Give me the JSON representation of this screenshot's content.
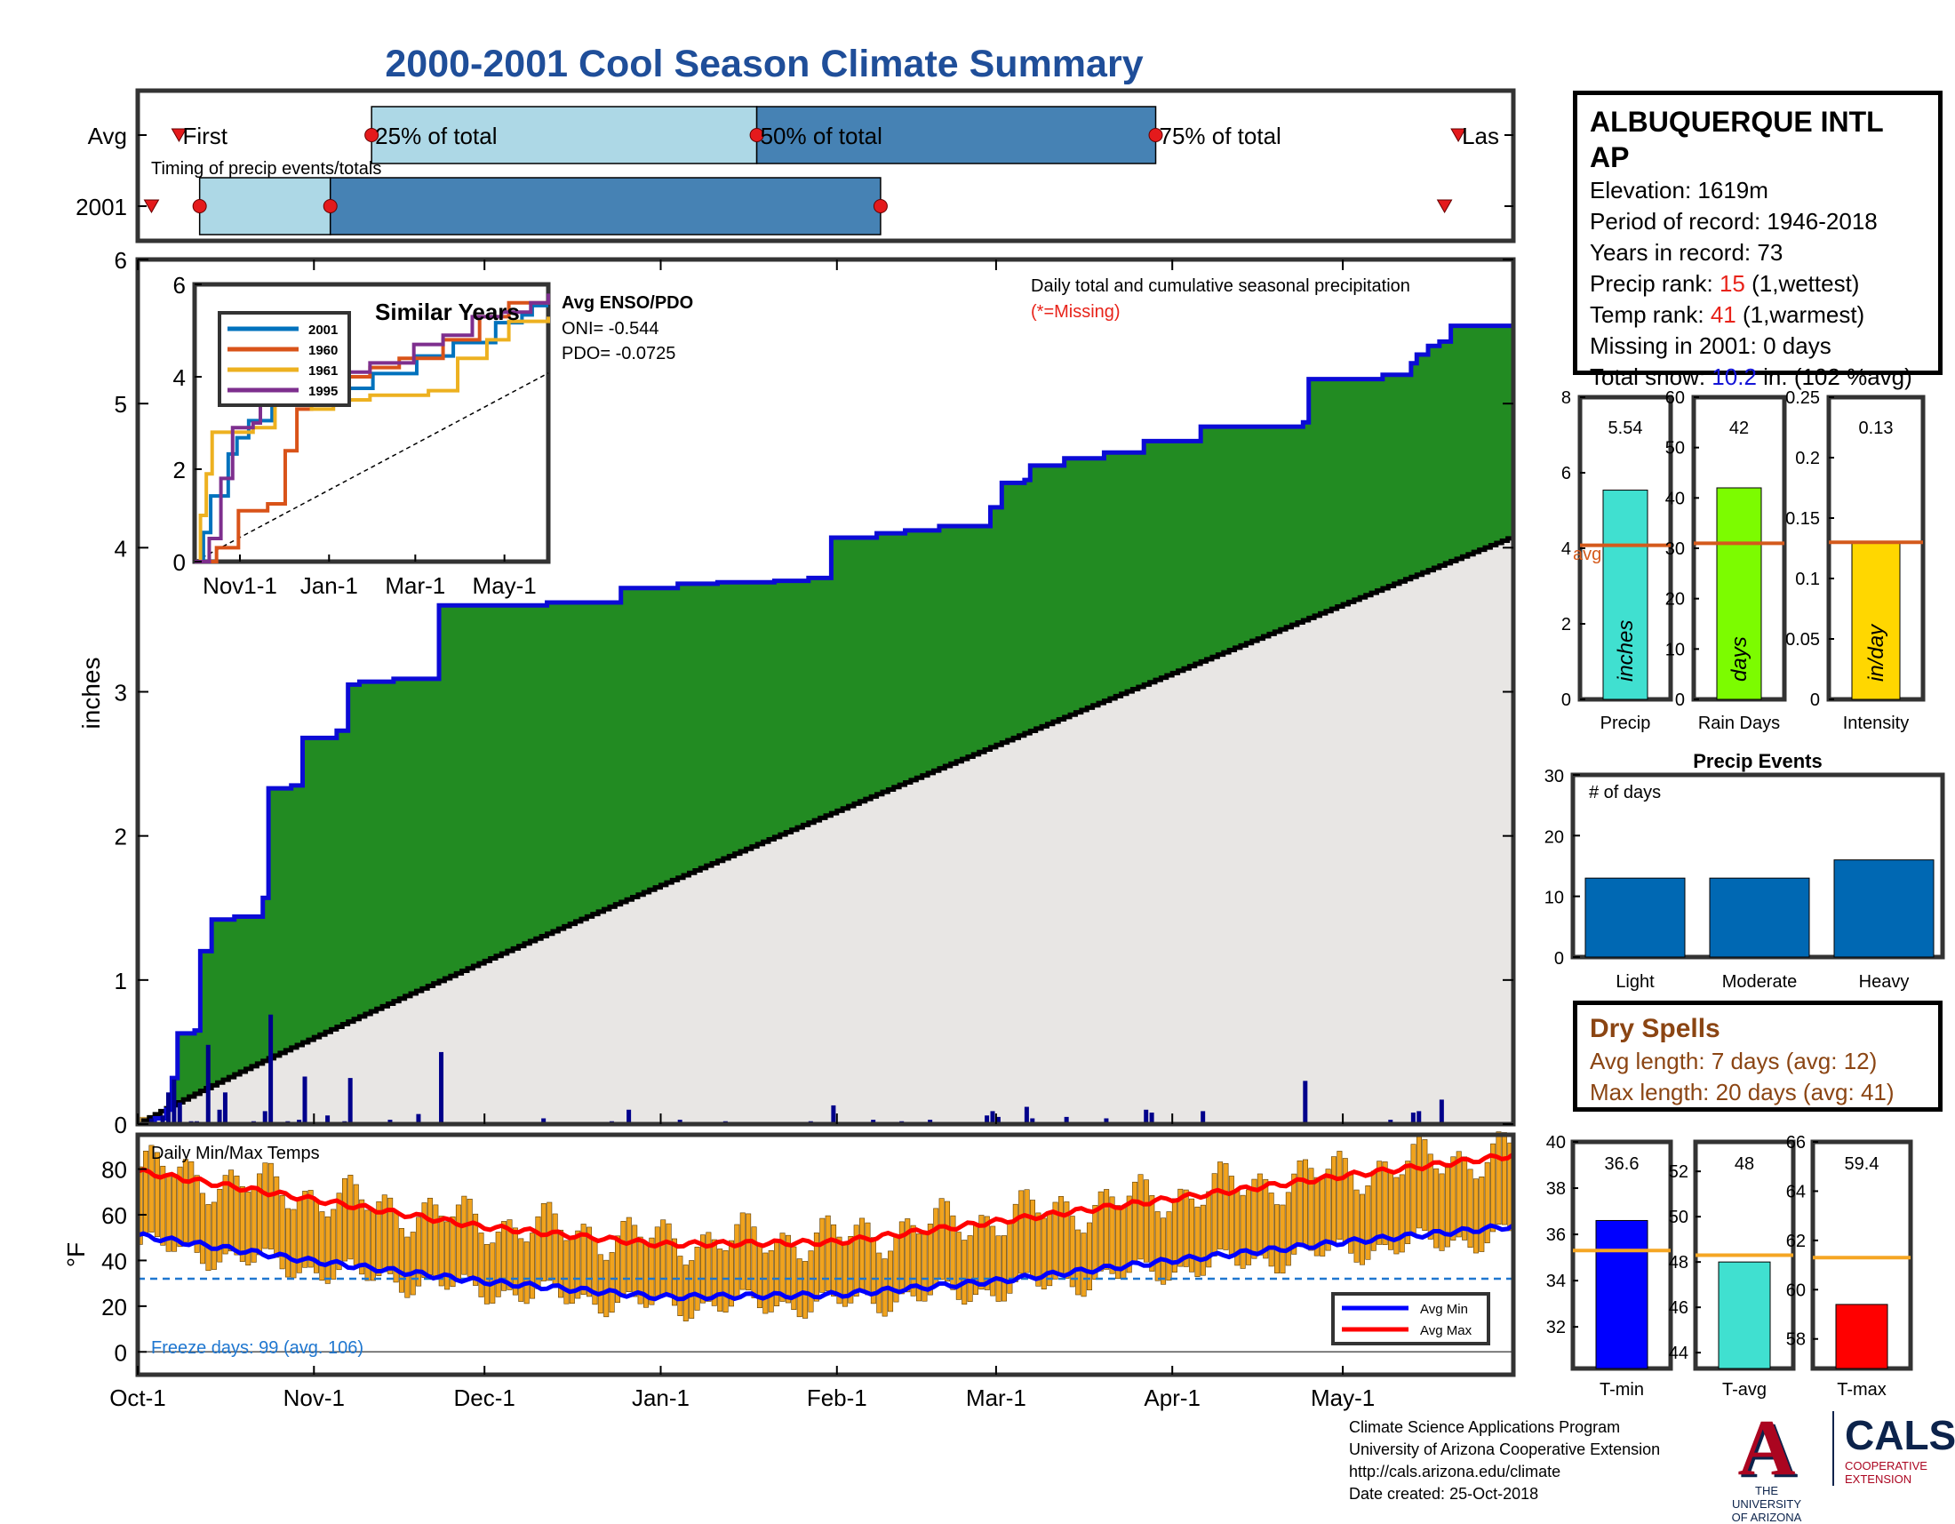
{
  "title": "2000-2001 Cool Season Climate Summary",
  "station": {
    "name": "ALBUQUERQUE INTL AP",
    "elevation": "Elevation: 1619m",
    "period": "Period of record: 1946-2018",
    "years": "Years in record: 73",
    "precip_rank_label": "Precip rank: ",
    "precip_rank_value": "15",
    "precip_rank_note": " (1,wettest)",
    "temp_rank_label": "Temp rank: ",
    "temp_rank_value": "41",
    "temp_rank_note": " (1,warmest)",
    "missing": "Missing in 2001: 0 days",
    "snow_label": "Total snow: ",
    "snow_value": "10.2",
    "snow_note": " in. (102 %avg)"
  },
  "timing": {
    "title": "Timing of precip events/totals",
    "row_labels": [
      "Avg",
      "2001"
    ],
    "labels": [
      "First",
      "25% of total",
      "50% of total",
      "75% of total",
      "Las"
    ],
    "avg": {
      "first": 0.03,
      "p25": 0.17,
      "p50": 0.45,
      "p75": 0.74,
      "last": 0.96
    },
    "y2001": {
      "first": 0.01,
      "p25": 0.045,
      "p50": 0.14,
      "p75": 0.54,
      "last": 0.95
    },
    "colors": {
      "light": "#add8e6",
      "dark": "#4682b4",
      "marker": "#e41a1c"
    }
  },
  "main": {
    "subtitle": "Daily total and cumulative seasonal precipitation",
    "missing_note": "(*=Missing)",
    "ylabel": "inches",
    "ylim": [
      0,
      6
    ],
    "yticks": [
      "0",
      "1",
      "2",
      "3",
      "4",
      "5",
      "6"
    ],
    "xticks": [
      "Oct-1",
      "Nov-1",
      "Dec-1",
      "Jan-1",
      "Feb-1",
      "Mar-1",
      "Apr-1",
      "May-1"
    ],
    "xtick_days": [
      0,
      31,
      61,
      92,
      123,
      151,
      182,
      212
    ],
    "season_days": 242,
    "avg_total": 4.08,
    "colors": {
      "above": "#228b22",
      "avg_fill": "#e8e6e4",
      "cum_line": "#0b0bd6",
      "avg_line": "#000000",
      "daily": "#00008b"
    }
  },
  "chart_data": [
    {
      "type": "area",
      "title": "Daily total and cumulative seasonal precipitation",
      "ylabel": "inches",
      "ylim": [
        0,
        6
      ],
      "series": [
        {
          "name": "2001",
          "steps": [
            [
              0,
              0
            ],
            [
              3,
              0.04
            ],
            [
              5,
              0.1
            ],
            [
              6,
              0.32
            ],
            [
              7,
              0.63
            ],
            [
              10,
              0.65
            ],
            [
              11,
              1.2
            ],
            [
              13,
              1.42
            ],
            [
              17,
              1.44
            ],
            [
              22,
              1.57
            ],
            [
              23,
              2.33
            ],
            [
              27,
              2.35
            ],
            [
              29,
              2.68
            ],
            [
              35,
              2.73
            ],
            [
              37,
              3.05
            ],
            [
              39,
              3.07
            ],
            [
              45,
              3.09
            ],
            [
              53,
              3.6
            ],
            [
              72,
              3.62
            ],
            [
              85,
              3.72
            ],
            [
              95,
              3.75
            ],
            [
              102,
              3.76
            ],
            [
              112,
              3.77
            ],
            [
              118,
              3.79
            ],
            [
              122,
              4.07
            ],
            [
              130,
              4.1
            ],
            [
              135,
              4.12
            ],
            [
              141,
              4.15
            ],
            [
              150,
              4.28
            ],
            [
              152,
              4.45
            ],
            [
              156,
              4.47
            ],
            [
              157,
              4.57
            ],
            [
              163,
              4.62
            ],
            [
              170,
              4.66
            ],
            [
              177,
              4.74
            ],
            [
              187,
              4.84
            ],
            [
              205,
              4.87
            ],
            [
              206,
              5.17
            ],
            [
              219,
              5.2
            ],
            [
              224,
              5.28
            ],
            [
              225,
              5.34
            ],
            [
              227,
              5.4
            ],
            [
              229,
              5.43
            ],
            [
              231,
              5.54
            ],
            [
              242,
              5.54
            ]
          ]
        }
      ],
      "daily": [
        [
          2,
          0.04
        ],
        [
          4,
          0.06
        ],
        [
          5,
          0.22
        ],
        [
          6,
          0.31
        ],
        [
          7,
          0.15
        ],
        [
          9,
          0.02
        ],
        [
          10,
          0.02
        ],
        [
          12,
          0.55
        ],
        [
          14,
          0.1
        ],
        [
          15,
          0.22
        ],
        [
          20,
          0.02
        ],
        [
          22,
          0.09
        ],
        [
          23,
          0.76
        ],
        [
          26,
          0.02
        ],
        [
          28,
          0.03
        ],
        [
          29,
          0.33
        ],
        [
          33,
          0.06
        ],
        [
          36,
          0.02
        ],
        [
          37,
          0.32
        ],
        [
          44,
          0.03
        ],
        [
          49,
          0.07
        ],
        [
          53,
          0.5
        ],
        [
          71,
          0.04
        ],
        [
          83,
          0.02
        ],
        [
          86,
          0.1
        ],
        [
          95,
          0.03
        ],
        [
          103,
          0.02
        ],
        [
          112,
          0.01
        ],
        [
          118,
          0.02
        ],
        [
          122,
          0.13
        ],
        [
          129,
          0.03
        ],
        [
          134,
          0.02
        ],
        [
          139,
          0.03
        ],
        [
          149,
          0.06
        ],
        [
          150,
          0.09
        ],
        [
          151,
          0.05
        ],
        [
          156,
          0.12
        ],
        [
          157,
          0.04
        ],
        [
          163,
          0.05
        ],
        [
          170,
          0.04
        ],
        [
          177,
          0.1
        ],
        [
          178,
          0.08
        ],
        [
          187,
          0.09
        ],
        [
          205,
          0.3
        ],
        [
          220,
          0.03
        ],
        [
          224,
          0.08
        ],
        [
          225,
          0.09
        ],
        [
          229,
          0.17
        ]
      ],
      "avg_total": 4.08
    },
    {
      "type": "line",
      "title": "Similar Years",
      "xticks": [
        "Nov1-1",
        "Jan-1",
        "Mar-1",
        "May-1"
      ],
      "ylim": [
        0,
        6
      ],
      "series": [
        {
          "name": "2001",
          "color": "#0072bd",
          "steps": [
            [
              0,
              0
            ],
            [
              6,
              0.63
            ],
            [
              11,
              1.42
            ],
            [
              23,
              2.33
            ],
            [
              29,
              2.68
            ],
            [
              37,
              3.05
            ],
            [
              53,
              3.6
            ],
            [
              95,
              3.75
            ],
            [
              122,
              4.07
            ],
            [
              152,
              4.45
            ],
            [
              177,
              4.74
            ],
            [
              206,
              5.17
            ],
            [
              224,
              5.34
            ],
            [
              231,
              5.54
            ],
            [
              242,
              5.54
            ]
          ]
        },
        {
          "name": "1960",
          "color": "#d95319",
          "steps": [
            [
              0,
              0
            ],
            [
              15,
              0.3
            ],
            [
              30,
              1.1
            ],
            [
              50,
              1.25
            ],
            [
              62,
              2.4
            ],
            [
              70,
              3.3
            ],
            [
              80,
              3.8
            ],
            [
              95,
              4.0
            ],
            [
              120,
              4.2
            ],
            [
              140,
              4.4
            ],
            [
              170,
              4.8
            ],
            [
              195,
              5.3
            ],
            [
              215,
              5.6
            ],
            [
              242,
              5.7
            ]
          ]
        },
        {
          "name": "1961",
          "color": "#edb120",
          "steps": [
            [
              0,
              0
            ],
            [
              4,
              1.0
            ],
            [
              8,
              1.9
            ],
            [
              12,
              2.8
            ],
            [
              40,
              2.9
            ],
            [
              55,
              3.9
            ],
            [
              80,
              3.3
            ],
            [
              95,
              3.5
            ],
            [
              120,
              3.6
            ],
            [
              160,
              3.7
            ],
            [
              180,
              4.4
            ],
            [
              200,
              4.8
            ],
            [
              215,
              5.2
            ],
            [
              242,
              5.3
            ]
          ]
        },
        {
          "name": "1995",
          "color": "#7e2f8e",
          "steps": [
            [
              0,
              0
            ],
            [
              10,
              0.5
            ],
            [
              18,
              1.8
            ],
            [
              26,
              2.9
            ],
            [
              40,
              3.0
            ],
            [
              45,
              3.9
            ],
            [
              65,
              4.0
            ],
            [
              90,
              4.1
            ],
            [
              120,
              4.3
            ],
            [
              150,
              4.7
            ],
            [
              170,
              4.9
            ],
            [
              190,
              5.3
            ],
            [
              210,
              5.4
            ],
            [
              230,
              5.6
            ],
            [
              242,
              5.8
            ]
          ]
        }
      ],
      "avg_line_end": 4.08
    },
    {
      "type": "bar",
      "title": "Season totals",
      "panels": [
        {
          "xlabel": "Precip",
          "unit": "inches",
          "value": 5.54,
          "avg": 4.08,
          "ylim": [
            0,
            8
          ],
          "yticks": [
            "0",
            "2",
            "4",
            "6",
            "8"
          ],
          "label": "5.54",
          "color": "#40e0d0"
        },
        {
          "xlabel": "Rain Days",
          "unit": "days",
          "value": 42,
          "avg": 31,
          "ylim": [
            0,
            60
          ],
          "yticks": [
            "0",
            "10",
            "20",
            "30",
            "40",
            "50",
            "60"
          ],
          "label": "42",
          "color": "#7cfc00"
        },
        {
          "xlabel": "Intensity",
          "unit": "in/day",
          "value": 0.13,
          "avg": 0.13,
          "ylim": [
            0,
            0.25
          ],
          "yticks": [
            "0",
            "0.05",
            "0.1",
            "0.15",
            "0.2",
            "0.25"
          ],
          "label": "0.13",
          "color": "#ffd700"
        }
      ],
      "avg_label": "avg"
    },
    {
      "type": "bar",
      "title": "Precip Events",
      "ylabel": "# of days",
      "categories": [
        "Light",
        "Moderate",
        "Heavy"
      ],
      "values": [
        13,
        13,
        16
      ],
      "ylim": [
        0,
        30
      ],
      "yticks": [
        "0",
        "10",
        "20",
        "30"
      ],
      "color": "#0068b3"
    },
    {
      "type": "bar",
      "title": "Daily Min/Max Temps",
      "ylabel": "°F",
      "ylim": [
        -10,
        95
      ],
      "yticks": [
        "0",
        "20",
        "40",
        "60",
        "80"
      ],
      "freeze_line": 32,
      "freeze_note": "Freeze days: 99 (avg. 106)",
      "legend": [
        "Avg Min",
        "Avg Max"
      ],
      "avg_min": [
        [
          0,
          51
        ],
        [
          30,
          40
        ],
        [
          60,
          31
        ],
        [
          92,
          24
        ],
        [
          123,
          25
        ],
        [
          151,
          31
        ],
        [
          182,
          40
        ],
        [
          212,
          48
        ],
        [
          242,
          55
        ]
      ],
      "avg_max": [
        [
          0,
          79
        ],
        [
          30,
          67
        ],
        [
          60,
          55
        ],
        [
          92,
          47
        ],
        [
          123,
          48
        ],
        [
          151,
          57
        ],
        [
          182,
          67
        ],
        [
          212,
          77
        ],
        [
          242,
          86
        ]
      ],
      "colors": {
        "bars": "#f0a31e",
        "min": "#0000ff",
        "max": "#ff0000",
        "freeze": "#1f77d0"
      }
    },
    {
      "type": "bar",
      "title": "Seasonal temperatures",
      "panels": [
        {
          "xlabel": "T-min",
          "value": 36.6,
          "avg": 35.3,
          "ylim": [
            30.2,
            40
          ],
          "yticks": [
            "32",
            "34",
            "36",
            "38",
            "40"
          ],
          "label": "36.6",
          "color": "#0000ff"
        },
        {
          "xlabel": "T-avg",
          "value": 48,
          "avg": 48.3,
          "ylim": [
            43.3,
            53.3
          ],
          "yticks": [
            "44",
            "46",
            "48",
            "50",
            "52"
          ],
          "label": "48",
          "color": "#40e0d0"
        },
        {
          "xlabel": "T-max",
          "value": 59.4,
          "avg": 61.3,
          "ylim": [
            56.8,
            66
          ],
          "yticks": [
            "58",
            "60",
            "62",
            "64",
            "66"
          ],
          "label": "59.4",
          "color": "#ff0000"
        }
      ],
      "avg_color": "#f5a623"
    }
  ],
  "inset": {
    "title": "Similar Years",
    "enso_title": "Avg ENSO/PDO",
    "oni": "ONI= -0.544",
    "pdo": "PDO= -0.0725",
    "yticks": [
      "0",
      "2",
      "4",
      "6"
    ]
  },
  "dry": {
    "title": "Dry Spells",
    "avg": "Avg length: 7 days (avg: 12)",
    "max": "Max length: 20 days (avg: 41)"
  },
  "footer": {
    "line1": "Climate Science Applications Program",
    "line2": "University of Arizona Cooperative Extension",
    "line3": "http://cals.arizona.edu/climate",
    "line4": " Date created: 25-Oct-2018"
  },
  "logos": {
    "ua_letter": "A",
    "ua_line1": "THE UNIVERSITY",
    "ua_line2": "OF ARIZONA",
    "cals": "CALS",
    "cals_line1": "COOPERATIVE",
    "cals_line2": "EXTENSION"
  }
}
